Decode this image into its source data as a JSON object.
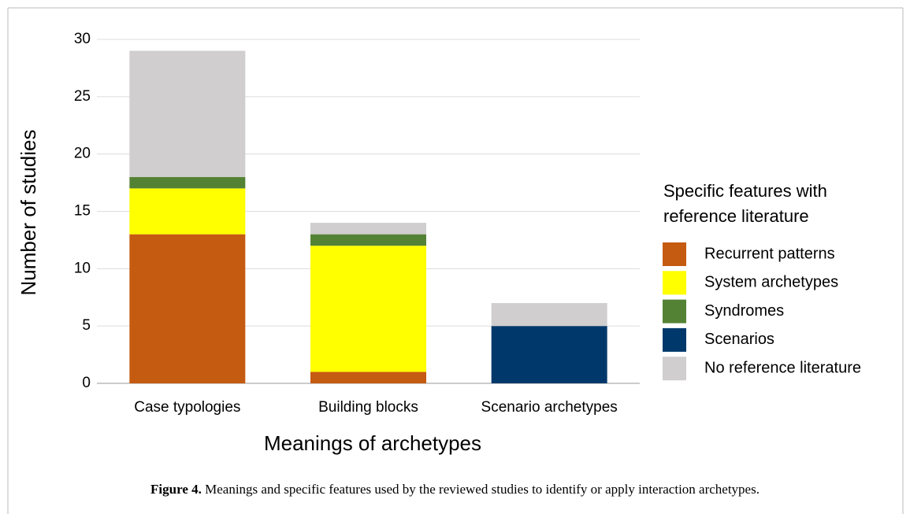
{
  "chart_data": {
    "type": "stacked_bar",
    "x_label": "Meanings of archetypes",
    "y_label": "Number of studies",
    "categories": [
      "Case typologies",
      "Building blocks",
      "Scenario archetypes"
    ],
    "series": [
      {
        "name": "Recurrent patterns",
        "color": "#c55a11",
        "values": [
          13,
          1,
          0
        ]
      },
      {
        "name": "System archetypes",
        "color": "#ffff00",
        "values": [
          4,
          11,
          0
        ]
      },
      {
        "name": "Syndromes",
        "color": "#548235",
        "values": [
          1,
          1,
          0
        ]
      },
      {
        "name": "Scenarios",
        "color": "#00386b",
        "values": [
          0,
          0,
          5
        ]
      },
      {
        "name": "No reference literature",
        "color": "#d0cece",
        "values": [
          11,
          1,
          2
        ]
      }
    ],
    "legend_title": "Specific features with reference literature",
    "ylim": [
      0,
      30
    ],
    "yticks": [
      0,
      5,
      10,
      15,
      20,
      25,
      30
    ],
    "grid": true
  },
  "caption": {
    "label": "Figure 4.",
    "text": "Meanings and specific features used by the reviewed studies to identify or apply interaction archetypes."
  }
}
